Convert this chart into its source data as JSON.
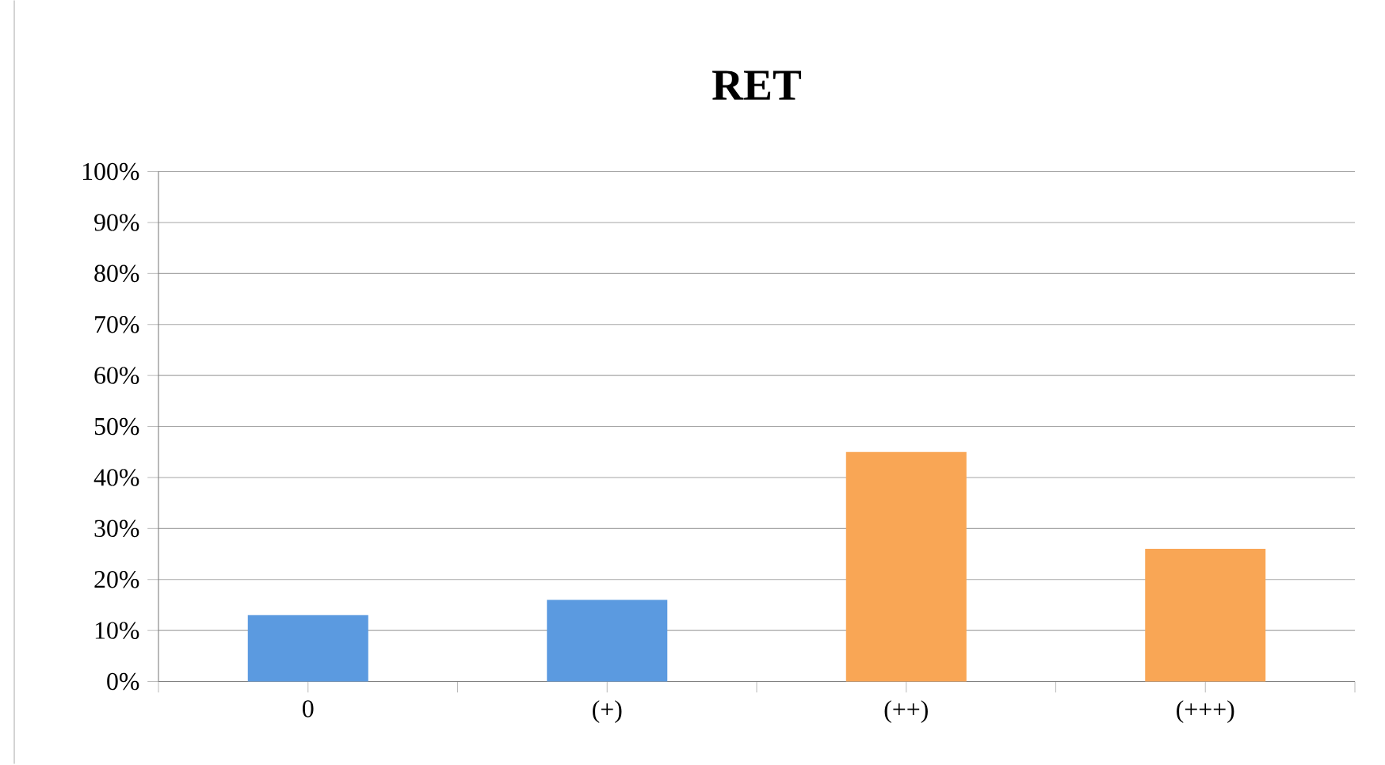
{
  "chart_data": {
    "type": "bar",
    "title": "RET",
    "categories": [
      "0",
      "(+)",
      "(++)",
      "(+++)"
    ],
    "values": [
      13,
      16,
      45,
      26
    ],
    "colors": [
      "#5b9ae0",
      "#5b9ae0",
      "#f9a655",
      "#f9a655"
    ],
    "ylim": [
      0,
      100
    ],
    "yticks": [
      {
        "value": 0,
        "label": "0%"
      },
      {
        "value": 10,
        "label": "10%"
      },
      {
        "value": 20,
        "label": "20%"
      },
      {
        "value": 30,
        "label": "30%"
      },
      {
        "value": 40,
        "label": "40%"
      },
      {
        "value": 50,
        "label": "50%"
      },
      {
        "value": 60,
        "label": "60%"
      },
      {
        "value": 70,
        "label": "70%"
      },
      {
        "value": 80,
        "label": "80%"
      },
      {
        "value": 90,
        "label": "90%"
      },
      {
        "value": 100,
        "label": "100%"
      }
    ],
    "grid": "y"
  }
}
